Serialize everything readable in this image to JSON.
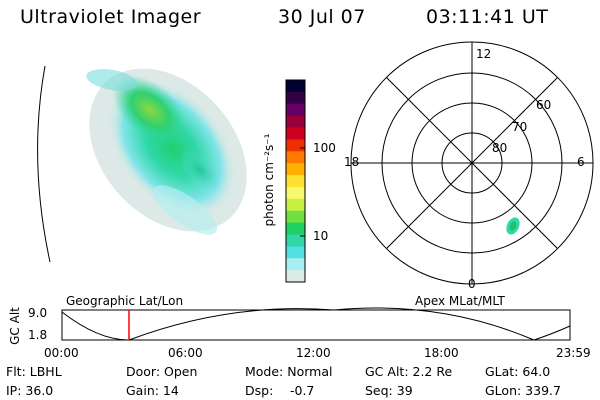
{
  "header": {
    "title": "Ultraviolet Imager",
    "date": "30 Jul 07",
    "time": "03:11:41 UT"
  },
  "colorbar": {
    "label": "photon cm⁻²s⁻¹",
    "ticks": [
      "100",
      "10"
    ],
    "colors": [
      "#000033",
      "#330044",
      "#660066",
      "#99003a",
      "#cc0020",
      "#ee3000",
      "#ff7a00",
      "#ffb000",
      "#ffe030",
      "#f8f870",
      "#c8f040",
      "#70e040",
      "#20d060",
      "#30d8a8",
      "#50e0e0",
      "#a8eef0",
      "#dceae8"
    ]
  },
  "polar_plot": {
    "mlt_labels": {
      "top": "12",
      "left": "18",
      "right": "6",
      "bottom": "0"
    },
    "lat_labels": [
      "60",
      "70",
      "80"
    ]
  },
  "timeline": {
    "y_label": "GC Alt",
    "y_ticks": [
      "9.0",
      "1.8"
    ],
    "left_title": "Geographic Lat/Lon",
    "right_title": "Apex MLat/MLT",
    "x_ticks": [
      "00:00",
      "06:00",
      "12:00",
      "18:00",
      "23:59"
    ],
    "marker_color": "#ff0000"
  },
  "info": {
    "row1": {
      "filter": "Flt: LBHL",
      "door": "Door: Open",
      "mode": "Mode: Normal",
      "gc_alt": "GC Alt: 2.2 Re",
      "glat": "GLat: 64.0"
    },
    "row2": {
      "ip": "IP: 36.0",
      "gain": "Gain: 14",
      "dsp_label": "Dsp:",
      "dsp_value": "-0.7",
      "seq": "Seq: 39",
      "glon": "GLon: 339.7"
    }
  }
}
